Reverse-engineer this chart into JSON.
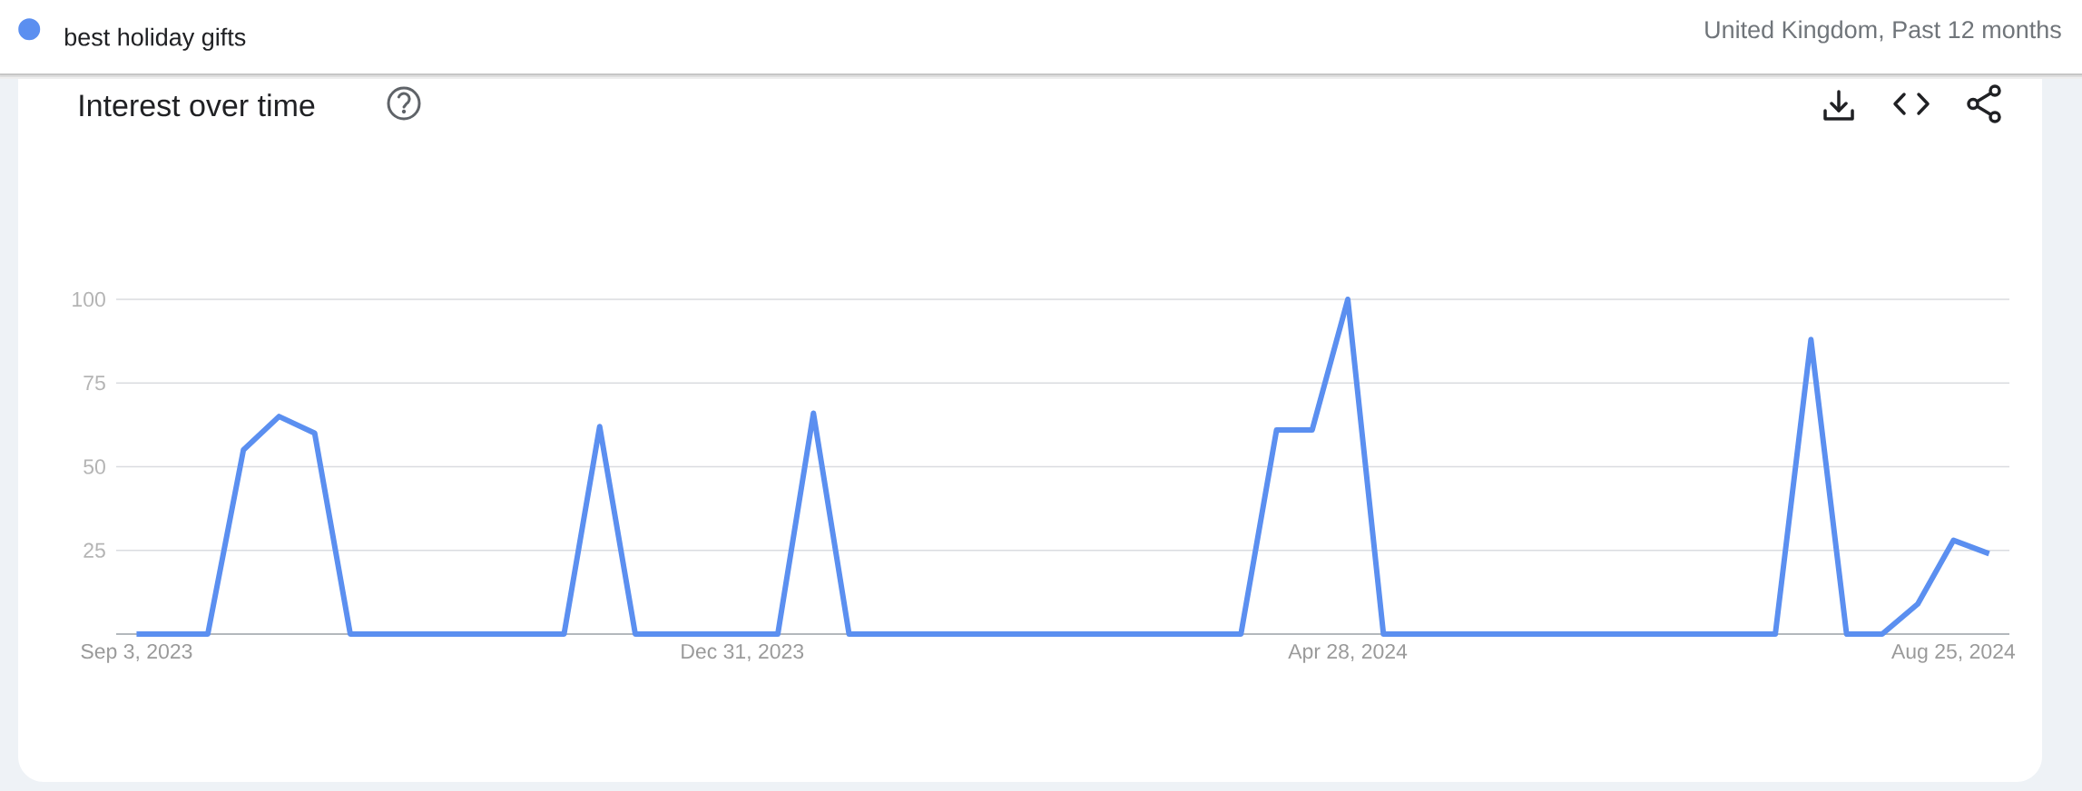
{
  "chart_data": {
    "type": "line",
    "title": "Interest over time",
    "subtitle": "United Kingdom, Past 12 months",
    "x": [
      "2023-09-03",
      "2023-09-10",
      "2023-09-17",
      "2023-09-24",
      "2023-10-01",
      "2023-10-08",
      "2023-10-15",
      "2023-10-22",
      "2023-10-29",
      "2023-11-05",
      "2023-11-12",
      "2023-11-19",
      "2023-11-26",
      "2023-12-03",
      "2023-12-10",
      "2023-12-17",
      "2023-12-24",
      "2023-12-31",
      "2024-01-07",
      "2024-01-14",
      "2024-01-21",
      "2024-01-28",
      "2024-02-04",
      "2024-02-11",
      "2024-02-18",
      "2024-02-25",
      "2024-03-03",
      "2024-03-10",
      "2024-03-17",
      "2024-03-24",
      "2024-03-31",
      "2024-04-07",
      "2024-04-14",
      "2024-04-21",
      "2024-04-28",
      "2024-05-05",
      "2024-05-12",
      "2024-05-19",
      "2024-05-26",
      "2024-06-02",
      "2024-06-09",
      "2024-06-16",
      "2024-06-23",
      "2024-06-30",
      "2024-07-07",
      "2024-07-14",
      "2024-07-21",
      "2024-07-28",
      "2024-08-04",
      "2024-08-11",
      "2024-08-18",
      "2024-08-25",
      "2024-09-01"
    ],
    "series": [
      {
        "name": "best holiday gifts",
        "color": "#5b8ff0",
        "values": [
          0,
          0,
          0,
          55,
          65,
          60,
          0,
          0,
          0,
          0,
          0,
          0,
          0,
          62,
          0,
          0,
          0,
          0,
          0,
          66,
          0,
          0,
          0,
          0,
          0,
          0,
          0,
          0,
          0,
          0,
          0,
          0,
          61,
          61,
          100,
          0,
          0,
          0,
          0,
          0,
          0,
          0,
          0,
          0,
          0,
          0,
          0,
          88,
          0,
          0,
          9,
          28,
          24
        ]
      }
    ],
    "xlim": [
      "2023-08-30",
      "2024-09-05"
    ],
    "xticks": [
      {
        "value": "2023-09-03",
        "label": "Sep 3, 2023"
      },
      {
        "value": "2023-12-31",
        "label": "Dec 31, 2023"
      },
      {
        "value": "2024-04-28",
        "label": "Apr 28, 2024"
      },
      {
        "value": "2024-08-25",
        "label": "Aug 25, 2024"
      }
    ],
    "ylim": [
      0,
      100
    ],
    "yticks": [
      25,
      50,
      75,
      100
    ],
    "grid": "y",
    "legend": "top left",
    "line_style": "solid"
  }
}
